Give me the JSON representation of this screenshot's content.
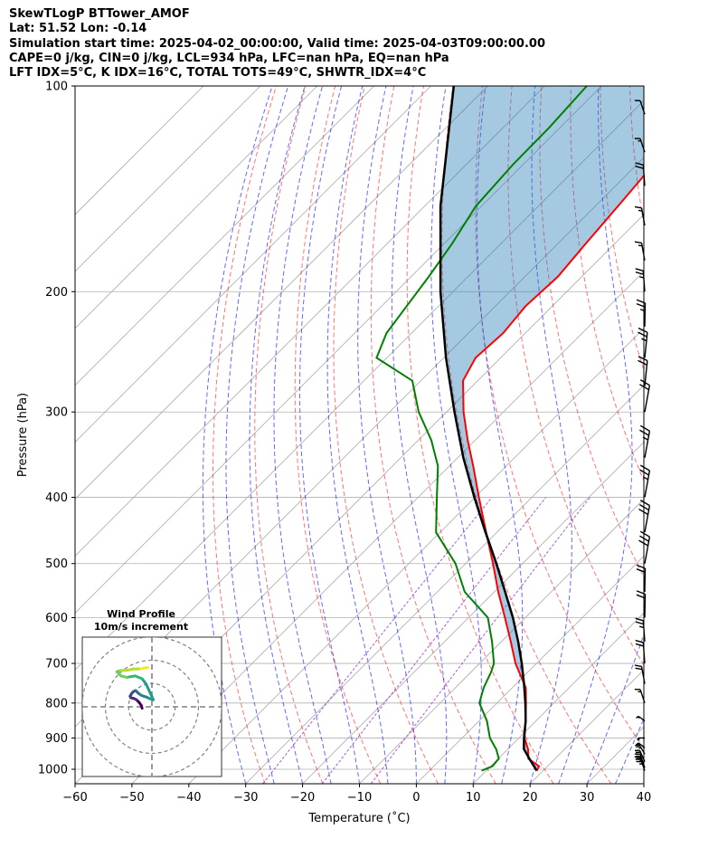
{
  "header": {
    "lines": [
      "SkewTLogP BTTower_AMOF",
      "Lat: 51.52   Lon: -0.14",
      "Simulation start time: 2025-04-02_00:00:00, Valid time: 2025-04-03T09:00:00.00",
      "CAPE=0 j/kg, CIN=0 j/kg, LCL=934 hPa, LFC=nan hPa, EQ=nan hPa",
      "LFT IDX=5°C, K IDX=16°C, TOTAL TOTS=49°C, SHWTR_IDX=4°C"
    ]
  },
  "chart_data": {
    "type": "skewt-logp",
    "xlabel": "Temperature (˚C)",
    "ylabel": "Pressure (hPa)",
    "xlim": [
      -60,
      40
    ],
    "ylim": [
      1050,
      100
    ],
    "log_y": true,
    "grid": true,
    "x_ticks": [
      -60,
      -50,
      -40,
      -30,
      -20,
      -10,
      0,
      10,
      20,
      30,
      40
    ],
    "x_tick_labels": [
      "−60",
      "−50",
      "−40",
      "−30",
      "−20",
      "−10",
      "0",
      "10",
      "20",
      "30",
      "40"
    ],
    "y_ticks": [
      1000,
      900,
      800,
      700,
      600,
      500,
      400,
      300,
      200,
      100
    ],
    "y_tick_labels": [
      "1000",
      "900",
      "800",
      "700",
      "600",
      "500",
      "400",
      "300",
      "200",
      "100"
    ],
    "temperature": {
      "color": "#ff0000",
      "pressure": [
        1005,
        990,
        965,
        935,
        900,
        850,
        800,
        760,
        700,
        650,
        600,
        550,
        500,
        450,
        400,
        360,
        330,
        300,
        270,
        250,
        230,
        210,
        190,
        170,
        150,
        130,
        115,
        100
      ],
      "temp": [
        18.9,
        18.5,
        15.3,
        13.6,
        11.0,
        8.2,
        5.1,
        2.4,
        -3.7,
        -8.4,
        -13.6,
        -19.3,
        -25.2,
        -31.9,
        -39.3,
        -45.8,
        -51.3,
        -57.0,
        -62.6,
        -64.4,
        -63.9,
        -64.7,
        -64.2,
        -65.1,
        -66.0,
        -67.1,
        -67.5,
        -67.5
      ]
    },
    "dewpoint": {
      "color": "#008000",
      "pressure": [
        1005,
        990,
        965,
        935,
        900,
        850,
        800,
        760,
        720,
        700,
        650,
        600,
        550,
        500,
        450,
        400,
        360,
        330,
        300,
        270,
        250,
        230,
        210,
        190,
        170,
        150,
        130,
        115,
        100
      ],
      "dewpoint": [
        9.2,
        10.3,
        10.1,
        8.0,
        4.9,
        1.4,
        -3.1,
        -5.0,
        -6.5,
        -7.5,
        -11.7,
        -16.6,
        -25.2,
        -31.8,
        -40.7,
        -46.7,
        -52.0,
        -57.7,
        -64.9,
        -71.5,
        -81.8,
        -84.4,
        -85.6,
        -86.9,
        -88.6,
        -91.0,
        -91.8,
        -91.9,
        -92.6
      ]
    },
    "parcel_profile": {
      "color": "#000000",
      "pressure": [
        1005,
        970,
        934,
        900,
        850,
        800,
        750,
        700,
        650,
        600,
        550,
        500,
        450,
        400,
        350,
        300,
        250,
        200,
        150,
        100
      ],
      "temp": [
        18.9,
        15.9,
        12.8,
        10.9,
        8.2,
        5.0,
        1.4,
        -2.6,
        -7.1,
        -12.2,
        -18.1,
        -24.6,
        -32.0,
        -40.1,
        -49.0,
        -58.6,
        -69.6,
        -82.2,
        -97.2,
        -116.0
      ]
    },
    "shading_label": "",
    "wind_barbs": {
      "pressure": [
        1005,
        995,
        975,
        950,
        930,
        900,
        850,
        800,
        750,
        700,
        650,
        600,
        550,
        500,
        450,
        400,
        350,
        300,
        275,
        250,
        225,
        200,
        180,
        160,
        140,
        125,
        110
      ],
      "speed_kt": [
        35,
        35,
        30,
        25,
        20,
        20,
        15,
        15,
        20,
        20,
        25,
        20,
        20,
        30,
        30,
        25,
        25,
        20,
        20,
        25,
        25,
        25,
        15,
        15,
        20,
        15,
        10
      ],
      "direction_deg": [
        300,
        300,
        295,
        290,
        280,
        270,
        280,
        300,
        310,
        320,
        320,
        330,
        330,
        350,
        350,
        350,
        350,
        350,
        340,
        340,
        330,
        320,
        310,
        310,
        320,
        300,
        300
      ]
    },
    "hodograph": {
      "title": "Wind Profile",
      "subtitle": "10m/s increment",
      "rings": [
        10,
        20,
        30
      ],
      "u": [
        -3.5,
        -3.8,
        -4.5,
        -5.5,
        -6.5,
        -7.5,
        -7.8,
        -7.2,
        -6.5,
        -5.8,
        -5.0,
        -4.0,
        -3.0,
        -2.0,
        -1.0,
        0.5,
        -2.0,
        -3.5,
        -6.0,
        -9.0,
        -11.0,
        -12.5,
        -11.0,
        -9.0,
        -6.5,
        -4.0,
        -3.0,
        -1.5
      ],
      "v": [
        -0.5,
        0.5,
        1.5,
        2.5,
        3.0,
        3.2,
        3.8,
        4.8,
        5.5,
        5.8,
        5.0,
        4.2,
        3.8,
        3.5,
        3.0,
        2.5,
        8.0,
        10.0,
        11.0,
        10.5,
        11.0,
        12.5,
        13.0,
        13.0,
        13.5,
        13.5,
        13.8,
        14.0
      ]
    }
  }
}
